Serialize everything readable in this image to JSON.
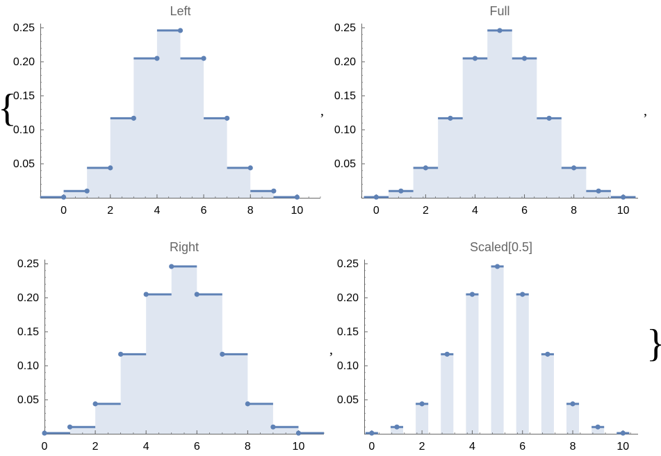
{
  "colors": {
    "line": "#5E81B5",
    "fill": "#DFE6F1",
    "axis": "#666666",
    "title": "#666666",
    "tick_label": "#000000"
  },
  "punctuation": {
    "open_brace": "{",
    "close_brace": "}",
    "comma": ","
  },
  "chart_data": [
    {
      "type": "line",
      "style": "step",
      "title": "Left",
      "xlabel": "",
      "ylabel": "",
      "xlim": [
        -1,
        11
      ],
      "ylim": [
        0,
        0.25
      ],
      "x_ticks": [
        0,
        2,
        4,
        6,
        8,
        10
      ],
      "y_ticks": [
        0.05,
        0.1,
        0.15,
        0.2,
        0.25
      ],
      "y_tick_labels": [
        "0.05",
        "0.10",
        "0.15",
        "0.20",
        "0.25"
      ],
      "x": [
        0,
        1,
        2,
        3,
        4,
        5,
        6,
        7,
        8,
        9,
        10
      ],
      "values": [
        0.001,
        0.01,
        0.044,
        0.117,
        0.205,
        0.246,
        0.205,
        0.117,
        0.044,
        0.01,
        0.001
      ],
      "step_alignment": "left",
      "filling": true
    },
    {
      "type": "line",
      "style": "step",
      "title": "Full",
      "xlabel": "",
      "ylabel": "",
      "xlim": [
        -0.6,
        10.6
      ],
      "ylim": [
        0,
        0.25
      ],
      "x_ticks": [
        0,
        2,
        4,
        6,
        8,
        10
      ],
      "y_ticks": [
        0.05,
        0.1,
        0.15,
        0.2,
        0.25
      ],
      "y_tick_labels": [
        "0.05",
        "0.10",
        "0.15",
        "0.20",
        "0.25"
      ],
      "x": [
        0,
        1,
        2,
        3,
        4,
        5,
        6,
        7,
        8,
        9,
        10
      ],
      "values": [
        0.001,
        0.01,
        0.044,
        0.117,
        0.205,
        0.246,
        0.205,
        0.117,
        0.044,
        0.01,
        0.001
      ],
      "step_alignment": "center",
      "filling": true
    },
    {
      "type": "line",
      "style": "step",
      "title": "Right",
      "xlabel": "",
      "ylabel": "",
      "xlim": [
        0,
        11
      ],
      "ylim": [
        0,
        0.25
      ],
      "x_ticks": [
        0,
        2,
        4,
        6,
        8,
        10
      ],
      "y_ticks": [
        0.05,
        0.1,
        0.15,
        0.2,
        0.25
      ],
      "y_tick_labels": [
        "0.05",
        "0.10",
        "0.15",
        "0.20",
        "0.25"
      ],
      "x": [
        0,
        1,
        2,
        3,
        4,
        5,
        6,
        7,
        8,
        9,
        10
      ],
      "values": [
        0.001,
        0.01,
        0.044,
        0.117,
        0.205,
        0.246,
        0.205,
        0.117,
        0.044,
        0.01,
        0.001
      ],
      "step_alignment": "right",
      "filling": true
    },
    {
      "type": "line",
      "style": "step",
      "title": "Scaled[0.5]",
      "xlabel": "",
      "ylabel": "",
      "xlim": [
        -0.3,
        10.6
      ],
      "ylim": [
        0,
        0.25
      ],
      "x_ticks": [
        0,
        2,
        4,
        6,
        8,
        10
      ],
      "y_ticks": [
        0.05,
        0.1,
        0.15,
        0.2,
        0.25
      ],
      "y_tick_labels": [
        "0.05",
        "0.10",
        "0.15",
        "0.20",
        "0.25"
      ],
      "x": [
        0,
        1,
        2,
        3,
        4,
        5,
        6,
        7,
        8,
        9,
        10
      ],
      "values": [
        0.001,
        0.01,
        0.044,
        0.117,
        0.205,
        0.246,
        0.205,
        0.117,
        0.044,
        0.01,
        0.001
      ],
      "step_alignment": "scaled",
      "step_scale": 0.5,
      "filling": true
    }
  ]
}
